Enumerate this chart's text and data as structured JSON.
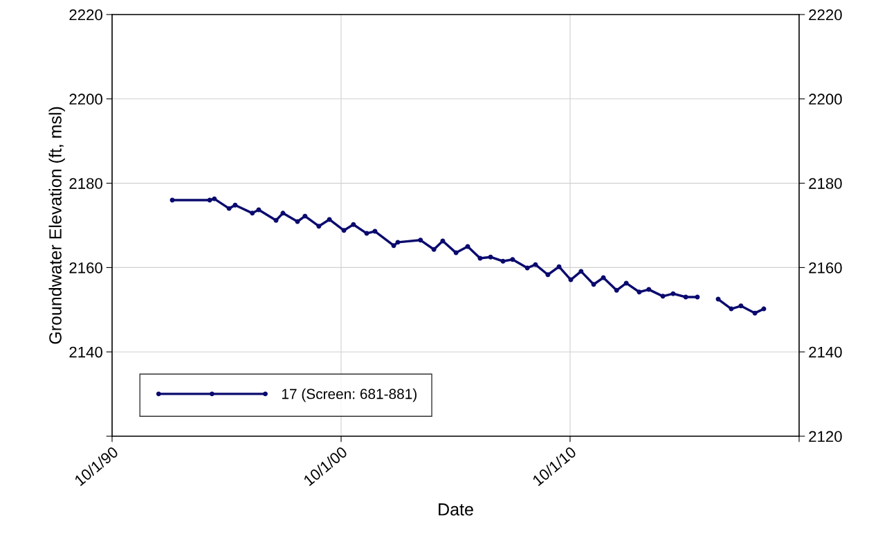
{
  "chart_data": {
    "type": "line",
    "xlabel": "Date",
    "ylabel": "Groundwater Elevation (ft, msl)",
    "x": [
      "1993-05-18",
      "1995-01-05",
      "1995-03-20",
      "1995-11-10",
      "1996-02-15",
      "1996-11-15",
      "1997-02-25",
      "1997-11-28",
      "1998-03-18",
      "1998-11-05",
      "1999-03-05",
      "1999-10-12",
      "2000-03-28",
      "2000-11-15",
      "2001-04-15",
      "2001-11-13",
      "2002-03-25",
      "2003-01-18",
      "2003-03-25",
      "2004-03-20",
      "2004-10-20",
      "2005-03-10",
      "2005-10-08",
      "2006-04-12",
      "2006-10-27",
      "2007-04-12",
      "2007-10-27",
      "2008-03-28",
      "2008-11-18",
      "2009-03-28",
      "2009-10-12",
      "2010-04-08",
      "2010-10-12",
      "2011-03-25",
      "2011-10-12",
      "2012-03-15",
      "2012-10-12",
      "2013-03-15",
      "2013-10-08",
      "2014-03-10",
      "2014-10-20",
      "2015-04-01",
      "2015-10-20",
      "2016-04-22",
      "2016-10-15",
      "2017-03-20",
      "2017-10-15",
      "2018-03-18",
      "2018-10-27",
      "2019-03-18"
    ],
    "series": [
      {
        "name": "17 (Screen: 681-881)",
        "color": "#0a0a6e",
        "values": [
          2176.0,
          2176.0,
          2176.3,
          2174.0,
          2174.8,
          2172.9,
          2173.7,
          2171.2,
          2172.9,
          2170.9,
          2172.2,
          2169.8,
          2171.4,
          2168.8,
          2170.2,
          2168.1,
          2168.6,
          2165.2,
          2166.0,
          2166.5,
          2164.3,
          2166.3,
          2163.5,
          2165.0,
          2162.2,
          2162.5,
          2161.5,
          2161.9,
          2159.9,
          2160.7,
          2158.3,
          2160.2,
          2157.1,
          2159.1,
          2156.0,
          2157.6,
          2154.6,
          2156.3,
          2154.2,
          2154.8,
          2153.2,
          2153.8,
          2153.0,
          2153.0,
          null,
          2152.5,
          2150.2,
          2150.9,
          2149.2,
          2150.2
        ]
      }
    ],
    "xlim": [
      "1990-10-01",
      "2020-10-01"
    ],
    "xticks": [
      {
        "value": "1990-10-01",
        "label": "10/1/90"
      },
      {
        "value": "2000-10-01",
        "label": "10/1/00"
      },
      {
        "value": "2010-10-01",
        "label": "10/1/10"
      },
      {
        "value": "2020-10-01",
        "label": null
      }
    ],
    "ylim": [
      2120,
      2220
    ],
    "yticks": [
      {
        "value": 2120,
        "label": null
      },
      2140,
      2160,
      2180,
      2200,
      2220
    ],
    "y2lim": [
      2120,
      2220
    ],
    "y2ticks": [
      2120,
      2140,
      2160,
      2180,
      2200,
      2220
    ],
    "grid": true,
    "legend": "bottom left",
    "marker": "circle",
    "line_style": "solid"
  }
}
